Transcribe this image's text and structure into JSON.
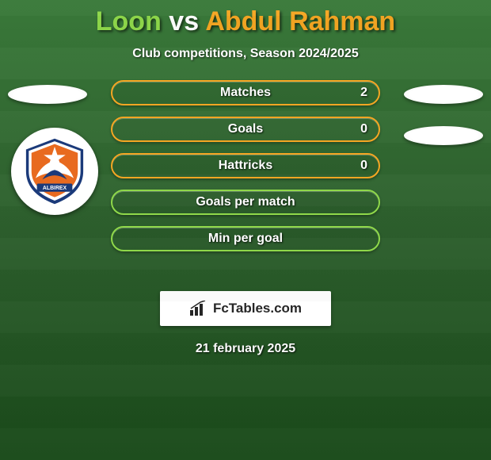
{
  "title": {
    "player1": "Loon",
    "vs": "vs",
    "player2": "Abdul Rahman",
    "player1_color": "#8fd84a",
    "vs_color": "#ffffff",
    "player2_color": "#f5a623"
  },
  "subtitle": "Club competitions, Season 2024/2025",
  "stats": [
    {
      "label": "Matches",
      "value": "2",
      "border_color": "#f5a623"
    },
    {
      "label": "Goals",
      "value": "0",
      "border_color": "#f5a623"
    },
    {
      "label": "Hattricks",
      "value": "0",
      "border_color": "#f5a623"
    },
    {
      "label": "Goals per match",
      "value": "",
      "border_color": "#8fd84a"
    },
    {
      "label": "Min per goal",
      "value": "",
      "border_color": "#8fd84a"
    }
  ],
  "crest": {
    "name": "albirex-crest",
    "primary": "#e86a1f",
    "secondary": "#1b3a7a",
    "accent": "#ffffff"
  },
  "branding": "FcTables.com",
  "date": "21 february 2025",
  "background_colors": {
    "top": "#3a7a3a",
    "mid": "#2d5f2d",
    "bottom": "#1a4a1a"
  }
}
